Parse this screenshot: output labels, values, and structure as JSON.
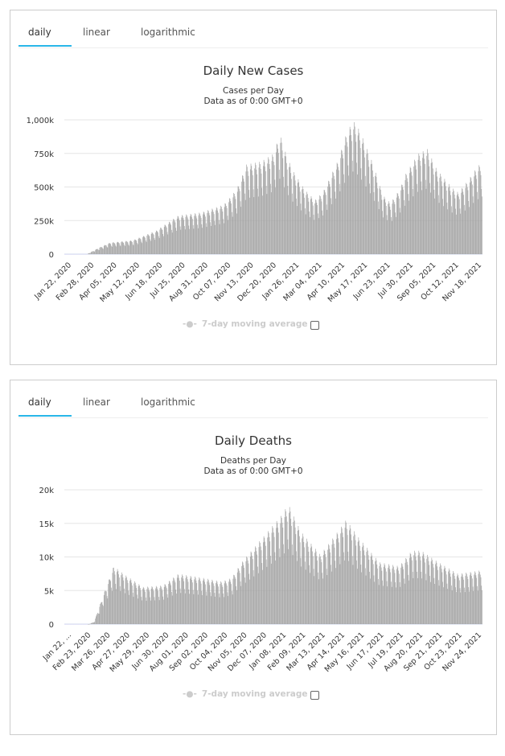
{
  "tabs": [
    "daily",
    "linear",
    "logarithmic"
  ],
  "legend": "7-day moving average",
  "chart_data": [
    {
      "type": "bar",
      "title": "Daily New Cases",
      "subtitle": "Cases per Day",
      "subtitle2": "Data as of 0:00 GMT+0",
      "ylim": [
        0,
        1000000
      ],
      "yticks": [
        "0",
        "250k",
        "500k",
        "750k",
        "1,000k"
      ],
      "ytick_values": [
        0,
        250000,
        500000,
        750000,
        1000000
      ],
      "xticks": [
        "Jan 22, 2020",
        "Feb 28, 2020",
        "Apr 05, 2020",
        "May 12, 2020",
        "Jun 18, 2020",
        "Jul 25, 2020",
        "Aug 31, 2020",
        "Oct 07, 2020",
        "Nov 13, 2020",
        "Dec 20, 2020",
        "Jan 26, 2021",
        "Mar 04, 2021",
        "Apr 10, 2021",
        "May 17, 2021",
        "Jun 23, 2021",
        "Jul 30, 2021",
        "Sep 05, 2021",
        "Oct 12, 2021",
        "Nov 18, 2021"
      ],
      "days": 680,
      "anchors_day_value": [
        [
          0,
          0
        ],
        [
          37,
          1000
        ],
        [
          55,
          40000
        ],
        [
          74,
          75000
        ],
        [
          111,
          90000
        ],
        [
          148,
          150000
        ],
        [
          185,
          250000
        ],
        [
          222,
          270000
        ],
        [
          259,
          320000
        ],
        [
          280,
          420000
        ],
        [
          296,
          580000
        ],
        [
          320,
          600000
        ],
        [
          340,
          650000
        ],
        [
          350,
          780000
        ],
        [
          360,
          650000
        ],
        [
          370,
          550000
        ],
        [
          390,
          420000
        ],
        [
          407,
          350000
        ],
        [
          420,
          400000
        ],
        [
          444,
          600000
        ],
        [
          460,
          800000
        ],
        [
          470,
          860000
        ],
        [
          480,
          800000
        ],
        [
          500,
          600000
        ],
        [
          518,
          380000
        ],
        [
          530,
          330000
        ],
        [
          545,
          420000
        ],
        [
          555,
          520000
        ],
        [
          575,
          650000
        ],
        [
          590,
          680000
        ],
        [
          605,
          550000
        ],
        [
          630,
          430000
        ],
        [
          640,
          400000
        ],
        [
          655,
          470000
        ],
        [
          670,
          560000
        ],
        [
          680,
          600000
        ]
      ]
    },
    {
      "type": "bar",
      "title": "Daily Deaths",
      "subtitle": "Deaths per Day",
      "subtitle2": "Data as of 0:00 GMT+0",
      "ylim": [
        0,
        20000
      ],
      "yticks": [
        "0",
        "5k",
        "10k",
        "15k",
        "20k"
      ],
      "ytick_values": [
        0,
        5000,
        10000,
        15000,
        20000
      ],
      "xticks": [
        "Jan 22, ...",
        "Feb 23, 2020",
        "Mar 26, 2020",
        "Apr 27, 2020",
        "May 29, 2020",
        "Jun 30, 2020",
        "Aug 01, 2020",
        "Sep 02, 2020",
        "Oct 04, 2020",
        "Nov 05, 2020",
        "Dec 07, 2020",
        "Jan 08, 2021",
        "Feb 09, 2021",
        "Mar 13, 2021",
        "Apr 14, 2021",
        "May 16, 2021",
        "Jun 17, 2021",
        "Jul 19, 2021",
        "Aug 20, 2021",
        "Sep 21, 2021",
        "Oct 23, 2021",
        "Nov 24, 2021"
      ],
      "days": 680,
      "anchors_day_value": [
        [
          0,
          0
        ],
        [
          40,
          0
        ],
        [
          48,
          300
        ],
        [
          64,
          4000
        ],
        [
          80,
          7500
        ],
        [
          96,
          6500
        ],
        [
          128,
          4800
        ],
        [
          160,
          5000
        ],
        [
          185,
          6500
        ],
        [
          224,
          6000
        ],
        [
          256,
          5500
        ],
        [
          272,
          6000
        ],
        [
          288,
          8000
        ],
        [
          320,
          11000
        ],
        [
          352,
          14000
        ],
        [
          364,
          15500
        ],
        [
          384,
          12000
        ],
        [
          416,
          9000
        ],
        [
          440,
          11500
        ],
        [
          458,
          13500
        ],
        [
          480,
          11000
        ],
        [
          512,
          8000
        ],
        [
          544,
          7500
        ],
        [
          565,
          9500
        ],
        [
          580,
          9500
        ],
        [
          608,
          8000
        ],
        [
          640,
          6500
        ],
        [
          680,
          7000
        ]
      ]
    }
  ]
}
